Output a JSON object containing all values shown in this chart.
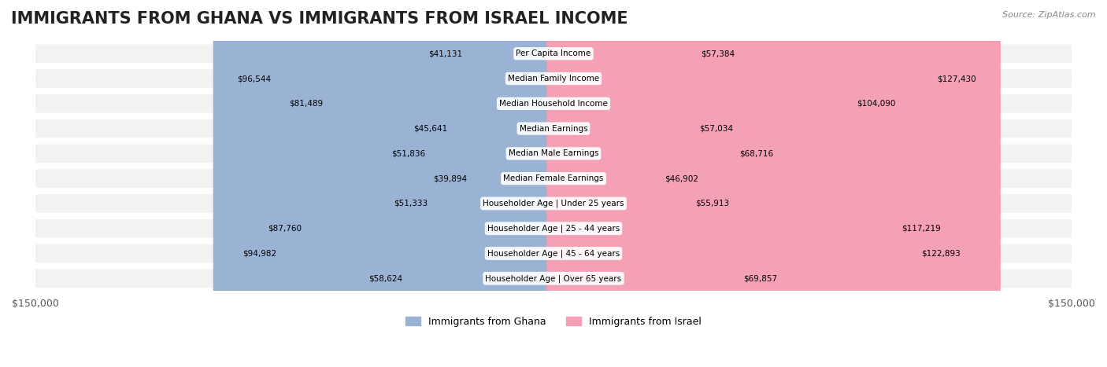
{
  "title": "IMMIGRANTS FROM GHANA VS IMMIGRANTS FROM ISRAEL INCOME",
  "source": "Source: ZipAtlas.com",
  "categories": [
    "Per Capita Income",
    "Median Family Income",
    "Median Household Income",
    "Median Earnings",
    "Median Male Earnings",
    "Median Female Earnings",
    "Householder Age | Under 25 years",
    "Householder Age | 25 - 44 years",
    "Householder Age | 45 - 64 years",
    "Householder Age | Over 65 years"
  ],
  "ghana_values": [
    41131,
    96544,
    81489,
    45641,
    51836,
    39894,
    51333,
    87760,
    94982,
    58624
  ],
  "israel_values": [
    57384,
    127430,
    104090,
    57034,
    68716,
    46902,
    55913,
    117219,
    122893,
    69857
  ],
  "ghana_labels": [
    "$41,131",
    "$96,544",
    "$81,489",
    "$45,641",
    "$51,836",
    "$39,894",
    "$51,333",
    "$87,760",
    "$94,982",
    "$58,624"
  ],
  "israel_labels": [
    "$57,384",
    "$127,430",
    "$104,090",
    "$57,034",
    "$68,716",
    "$46,902",
    "$55,913",
    "$117,219",
    "$122,893",
    "$69,857"
  ],
  "ghana_color": "#9ab3d5",
  "israel_color": "#f4a0b5",
  "ghana_color_dark": "#6a8fbf",
  "israel_color_dark": "#e8607a",
  "max_value": 150000,
  "legend_ghana": "Immigrants from Ghana",
  "legend_israel": "Immigrants from Israel",
  "background_color": "#ffffff",
  "row_bg_color": "#f2f2f2",
  "title_fontsize": 15,
  "label_fontsize": 9,
  "axis_label_fontsize": 9
}
